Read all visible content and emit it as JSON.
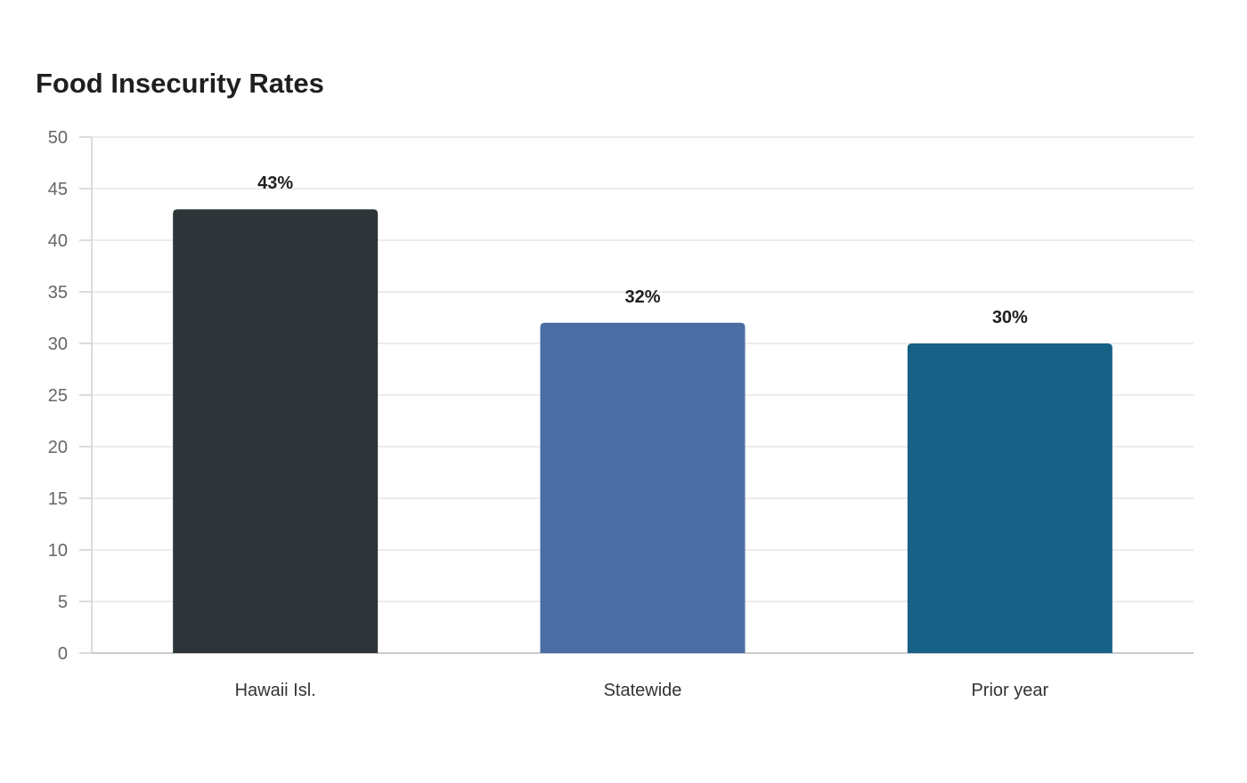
{
  "chart_data": {
    "type": "bar",
    "title": "Food Insecurity Rates",
    "categories": [
      "Hawaii Isl.",
      "Statewide",
      "Prior year"
    ],
    "values": [
      43,
      32,
      30
    ],
    "value_labels": [
      "43%",
      "32%",
      "30%"
    ],
    "colors": [
      "#2e3538",
      "#4a6ea3",
      "#176086"
    ],
    "ylim": [
      0,
      50
    ],
    "yticks": [
      "0",
      "5",
      "10",
      "15",
      "20",
      "25",
      "30",
      "35",
      "40",
      "45",
      "50"
    ],
    "ytick_values": [
      0,
      5,
      10,
      15,
      20,
      25,
      30,
      35,
      40,
      45,
      50
    ],
    "grid": true,
    "xlabel": "",
    "ylabel": ""
  }
}
